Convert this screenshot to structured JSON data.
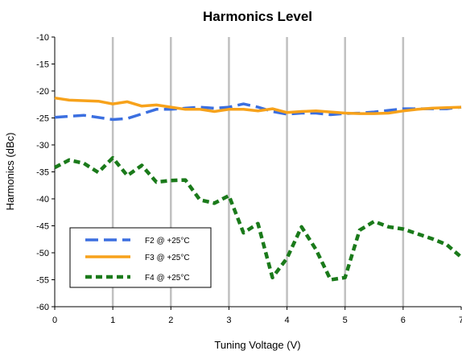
{
  "chart_data": {
    "type": "line",
    "title": "Harmonics Level",
    "xlabel": "Tuning Voltage (V)",
    "ylabel": "Harmonics (dBc)",
    "xlim": [
      0,
      7
    ],
    "ylim": [
      -60,
      -10
    ],
    "xticks": [
      "0",
      "1",
      "2",
      "3",
      "4",
      "5",
      "6",
      "7"
    ],
    "yticks": [
      "-10",
      "-15",
      "-20",
      "-25",
      "-30",
      "-35",
      "-40",
      "-45",
      "-50",
      "-55",
      "-60"
    ],
    "grid": "vertical",
    "legend_position": "bottom-left",
    "series": [
      {
        "name": "F2 @ +25°C",
        "color": "#3b6fe0",
        "dash": "long-dash",
        "points": [
          [
            0,
            -24.9
          ],
          [
            0.5,
            -24.5
          ],
          [
            1,
            -25.3
          ],
          [
            1.25,
            -25.1
          ],
          [
            1.75,
            -23.4
          ],
          [
            2,
            -23.4
          ],
          [
            2.25,
            -23.2
          ],
          [
            2.5,
            -23.0
          ],
          [
            2.75,
            -23.2
          ],
          [
            3,
            -23.0
          ],
          [
            3.25,
            -22.4
          ],
          [
            3.5,
            -23.0
          ],
          [
            3.75,
            -23.8
          ],
          [
            4,
            -24.3
          ],
          [
            4.25,
            -24.1
          ],
          [
            4.5,
            -24.1
          ],
          [
            4.75,
            -24.4
          ],
          [
            5,
            -24.2
          ],
          [
            5.25,
            -24.1
          ],
          [
            5.5,
            -23.9
          ],
          [
            5.75,
            -23.6
          ],
          [
            6,
            -23.3
          ],
          [
            6.25,
            -23.3
          ],
          [
            6.5,
            -23.3
          ],
          [
            6.75,
            -23.3
          ],
          [
            7,
            -23.0
          ]
        ]
      },
      {
        "name": "F3 @ +25°C",
        "color": "#f7a21b",
        "dash": "solid",
        "points": [
          [
            0,
            -21.3
          ],
          [
            0.25,
            -21.7
          ],
          [
            0.75,
            -21.9
          ],
          [
            1,
            -22.4
          ],
          [
            1.25,
            -22.0
          ],
          [
            1.5,
            -22.8
          ],
          [
            1.75,
            -22.6
          ],
          [
            2,
            -23.0
          ],
          [
            2.25,
            -23.4
          ],
          [
            2.5,
            -23.4
          ],
          [
            2.75,
            -23.8
          ],
          [
            3,
            -23.4
          ],
          [
            3.25,
            -23.4
          ],
          [
            3.5,
            -23.7
          ],
          [
            3.75,
            -23.3
          ],
          [
            4,
            -24.0
          ],
          [
            4.25,
            -23.8
          ],
          [
            4.5,
            -23.7
          ],
          [
            4.75,
            -23.9
          ],
          [
            5,
            -24.1
          ],
          [
            5.25,
            -24.2
          ],
          [
            5.5,
            -24.2
          ],
          [
            5.75,
            -24.1
          ],
          [
            6,
            -23.7
          ],
          [
            6.25,
            -23.4
          ],
          [
            6.5,
            -23.2
          ],
          [
            7,
            -23.0
          ]
        ]
      },
      {
        "name": "F4 @ +25°C",
        "color": "#1a7a1a",
        "dash": "short-dash",
        "points": [
          [
            0,
            -34.2
          ],
          [
            0.25,
            -32.8
          ],
          [
            0.5,
            -33.4
          ],
          [
            0.75,
            -35.1
          ],
          [
            1,
            -32.4
          ],
          [
            1.25,
            -35.7
          ],
          [
            1.5,
            -33.8
          ],
          [
            1.75,
            -36.9
          ],
          [
            2,
            -36.6
          ],
          [
            2.25,
            -36.5
          ],
          [
            2.5,
            -40.2
          ],
          [
            2.75,
            -40.8
          ],
          [
            3,
            -39.4
          ],
          [
            3.25,
            -46.3
          ],
          [
            3.5,
            -44.6
          ],
          [
            3.75,
            -54.6
          ],
          [
            4,
            -51.0
          ],
          [
            4.25,
            -45.2
          ],
          [
            4.5,
            -49.4
          ],
          [
            4.75,
            -55.0
          ],
          [
            5,
            -54.6
          ],
          [
            5.25,
            -45.8
          ],
          [
            5.5,
            -44.2
          ],
          [
            5.75,
            -45.2
          ],
          [
            6,
            -45.6
          ],
          [
            6.5,
            -47.4
          ],
          [
            6.75,
            -48.5
          ],
          [
            7,
            -50.8
          ]
        ]
      }
    ]
  }
}
